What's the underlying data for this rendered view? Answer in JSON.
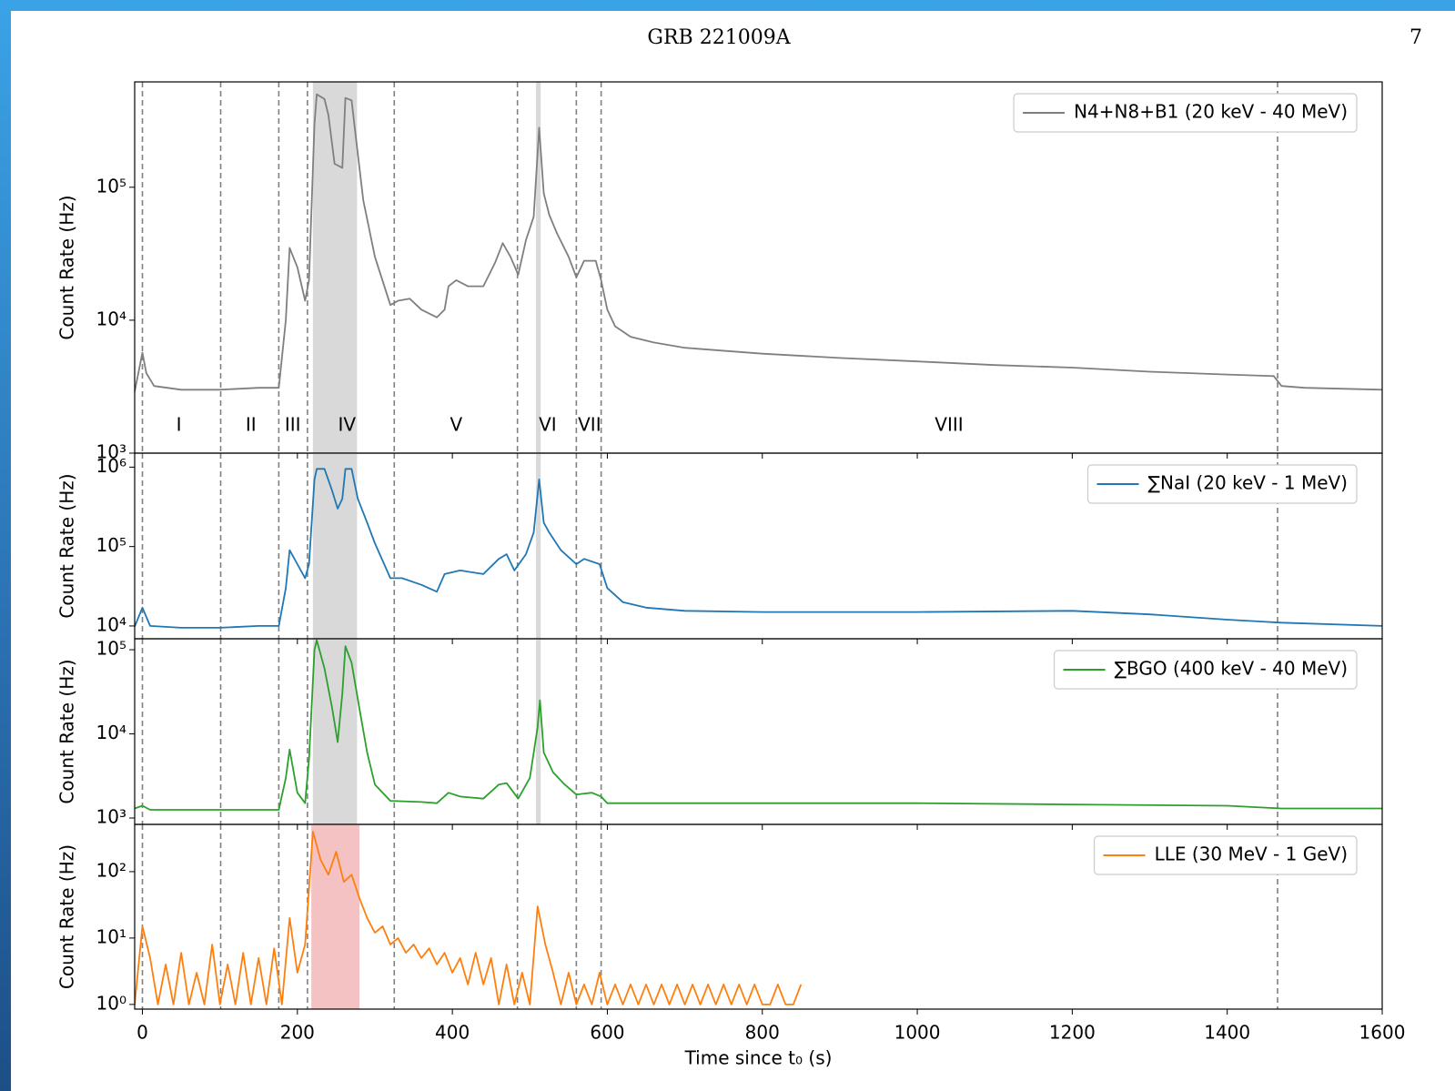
{
  "header": {
    "title": "GRB 221009A",
    "page": "7"
  },
  "chart_data": [
    {
      "type": "line",
      "ylabel": "Count Rate (Hz)",
      "log_y": true,
      "legend": "upper right",
      "xlim": [
        -10,
        1600
      ],
      "ylim": [
        1000,
        620000
      ],
      "yticks": [
        {
          "value": 1000,
          "label": "10³"
        },
        {
          "value": 10000,
          "label": "10⁴"
        },
        {
          "value": 100000,
          "label": "10⁵"
        }
      ],
      "vlines": [
        0,
        101,
        176,
        213,
        325,
        484,
        560,
        592,
        1465
      ],
      "shaded": [
        {
          "range": [
            220,
            277
          ],
          "color": "#d9d9d9"
        },
        {
          "range": [
            508,
            514
          ],
          "color": "#d9d9d9"
        }
      ],
      "regions": [
        {
          "label": "I",
          "x": 47
        },
        {
          "label": "II",
          "x": 140
        },
        {
          "label": "III",
          "x": 194
        },
        {
          "label": "IV",
          "x": 264
        },
        {
          "label": "V",
          "x": 405
        },
        {
          "label": "VI",
          "x": 523
        },
        {
          "label": "VII",
          "x": 577
        },
        {
          "label": "VIII",
          "x": 1041
        }
      ],
      "x": [
        -10,
        0,
        5,
        15,
        50,
        100,
        150,
        176,
        185,
        190,
        200,
        210,
        215,
        222,
        225,
        235,
        240,
        248,
        258,
        262,
        270,
        275,
        285,
        300,
        320,
        330,
        345,
        360,
        380,
        390,
        395,
        405,
        420,
        440,
        455,
        465,
        475,
        485,
        495,
        505,
        512,
        518,
        525,
        535,
        550,
        560,
        570,
        585,
        592,
        600,
        610,
        630,
        660,
        700,
        800,
        900,
        1000,
        1100,
        1200,
        1300,
        1400,
        1460,
        1470,
        1500,
        1600
      ],
      "series": [
        {
          "name": "N4+N8+B1 (20 keV - 40 MeV)",
          "color": "#7f7f7f",
          "values": [
            2900,
            5700,
            4000,
            3200,
            3000,
            3000,
            3100,
            3100,
            10000,
            35000,
            25000,
            14000,
            20000,
            300000,
            500000,
            460000,
            350000,
            150000,
            140000,
            470000,
            450000,
            250000,
            80000,
            30000,
            13000,
            14000,
            14500,
            12000,
            10500,
            12000,
            18000,
            20000,
            18000,
            18000,
            27000,
            38000,
            30000,
            22000,
            40000,
            60000,
            280000,
            90000,
            62000,
            45000,
            30000,
            21000,
            28000,
            28000,
            20000,
            12000,
            9000,
            7500,
            6800,
            6200,
            5600,
            5200,
            4900,
            4600,
            4400,
            4100,
            3900,
            3800,
            3200,
            3100,
            3000
          ]
        }
      ]
    },
    {
      "type": "line",
      "ylabel": "Count Rate (Hz)",
      "log_y": true,
      "legend": "upper right",
      "xlim": [
        -10,
        1600
      ],
      "ylim": [
        6900,
        1500000
      ],
      "yticks": [
        {
          "value": 10000,
          "label": "10⁴"
        },
        {
          "value": 100000,
          "label": "10⁵"
        },
        {
          "value": 1000000,
          "label": "10⁶"
        }
      ],
      "vlines": [
        0,
        101,
        176,
        213,
        325,
        484,
        560,
        592,
        1465
      ],
      "shaded": [
        {
          "range": [
            220,
            277
          ],
          "color": "#d9d9d9"
        },
        {
          "range": [
            508,
            514
          ],
          "color": "#d9d9d9"
        }
      ],
      "x": [
        -10,
        0,
        10,
        50,
        100,
        150,
        176,
        185,
        190,
        200,
        210,
        215,
        222,
        225,
        235,
        245,
        252,
        258,
        262,
        270,
        278,
        290,
        300,
        320,
        335,
        360,
        380,
        390,
        410,
        440,
        460,
        470,
        480,
        495,
        505,
        512,
        518,
        525,
        540,
        560,
        570,
        590,
        600,
        620,
        650,
        700,
        800,
        1000,
        1200,
        1300,
        1400,
        1470,
        1600
      ],
      "series": [
        {
          "name": "∑NaI (20 keV - 1 MeV)",
          "color": "#1f77b4",
          "values": [
            9800,
            17000,
            10000,
            9500,
            9500,
            10000,
            10000,
            30000,
            90000,
            60000,
            40000,
            60000,
            700000,
            950000,
            950000,
            500000,
            300000,
            400000,
            950000,
            950000,
            400000,
            200000,
            110000,
            40000,
            40000,
            33000,
            27000,
            45000,
            50000,
            45000,
            70000,
            80000,
            50000,
            80000,
            150000,
            700000,
            200000,
            150000,
            90000,
            60000,
            70000,
            60000,
            30000,
            20000,
            17000,
            15500,
            15000,
            15000,
            15500,
            14000,
            12000,
            11000,
            10000
          ]
        }
      ]
    },
    {
      "type": "line",
      "ylabel": "Count Rate (Hz)",
      "log_y": true,
      "legend": "upper right",
      "xlim": [
        -10,
        1600
      ],
      "ylim": [
        840,
        135000
      ],
      "yticks": [
        {
          "value": 1000,
          "label": "10³"
        },
        {
          "value": 10000,
          "label": "10⁴"
        },
        {
          "value": 100000,
          "label": "10⁵"
        }
      ],
      "vlines": [
        0,
        101,
        176,
        213,
        325,
        484,
        560,
        592,
        1465
      ],
      "shaded": [
        {
          "range": [
            220,
            277
          ],
          "color": "#d9d9d9"
        },
        {
          "range": [
            508,
            514
          ],
          "color": "#d9d9d9"
        }
      ],
      "x": [
        -10,
        0,
        10,
        100,
        176,
        185,
        190,
        200,
        210,
        215,
        222,
        225,
        235,
        245,
        252,
        258,
        262,
        270,
        280,
        290,
        300,
        320,
        360,
        380,
        395,
        410,
        440,
        460,
        470,
        485,
        500,
        510,
        513,
        518,
        530,
        545,
        560,
        580,
        592,
        600,
        800,
        1000,
        1200,
        1400,
        1470,
        1600
      ],
      "series": [
        {
          "name": "∑BGO (400 keV - 40 MeV)",
          "color": "#2ca02c",
          "values": [
            1300,
            1400,
            1250,
            1250,
            1250,
            3000,
            6500,
            2000,
            1500,
            5000,
            100000,
            130000,
            60000,
            20000,
            8000,
            30000,
            110000,
            70000,
            20000,
            6000,
            2500,
            1600,
            1550,
            1500,
            2000,
            1800,
            1700,
            2500,
            2600,
            1700,
            3000,
            12000,
            25000,
            6000,
            3500,
            2500,
            1900,
            2000,
            1800,
            1500,
            1500,
            1500,
            1450,
            1400,
            1300,
            1300
          ]
        }
      ]
    },
    {
      "type": "line",
      "ylabel": "Count Rate (Hz)",
      "xlabel": "Time since t₀ (s)",
      "log_y": true,
      "legend": "upper right",
      "xlim": [
        -10,
        1600
      ],
      "ylim": [
        0.85,
        515
      ],
      "yticks": [
        {
          "value": 1,
          "label": "10⁰"
        },
        {
          "value": 10,
          "label": "10¹"
        },
        {
          "value": 100,
          "label": "10²"
        }
      ],
      "xticks": [
        0,
        200,
        400,
        600,
        800,
        1000,
        1200,
        1400,
        1600
      ],
      "vlines": [
        0,
        101,
        176,
        213,
        325,
        484,
        560,
        592,
        1465
      ],
      "shaded": [
        {
          "range": [
            218,
            280
          ],
          "color": "#f4c2c2"
        }
      ],
      "x": [
        -10,
        0,
        10,
        20,
        30,
        40,
        50,
        60,
        70,
        80,
        90,
        100,
        110,
        120,
        130,
        140,
        150,
        160,
        170,
        180,
        190,
        200,
        210,
        220,
        230,
        240,
        250,
        260,
        270,
        280,
        290,
        300,
        310,
        320,
        330,
        340,
        350,
        360,
        370,
        380,
        390,
        400,
        410,
        420,
        430,
        440,
        450,
        460,
        470,
        480,
        490,
        500,
        510,
        520,
        530,
        540,
        550,
        560,
        570,
        580,
        590,
        600,
        610,
        620,
        630,
        640,
        650,
        660,
        670,
        680,
        690,
        700,
        710,
        720,
        730,
        740,
        750,
        760,
        770,
        780,
        790,
        800,
        810,
        820,
        830,
        840,
        850
      ],
      "series": [
        {
          "name": "LLE (30 MeV - 1 GeV)",
          "color": "#ff7f0e",
          "values": [
            1,
            15,
            5,
            1,
            4,
            1,
            6,
            1,
            3,
            1,
            8,
            1,
            4,
            1,
            6,
            1,
            5,
            1,
            7,
            1,
            20,
            3,
            8,
            400,
            150,
            90,
            200,
            70,
            90,
            40,
            20,
            12,
            15,
            8,
            10,
            6,
            8,
            5,
            7,
            4,
            6,
            3,
            5,
            2,
            6,
            2,
            5,
            1,
            4,
            1,
            3,
            1,
            30,
            8,
            3,
            1,
            3,
            1,
            2,
            1,
            3,
            1,
            2,
            1,
            2,
            1,
            2,
            1,
            2,
            1,
            2,
            1,
            2,
            1,
            2,
            1,
            2,
            1,
            2,
            1,
            2,
            1,
            1,
            2,
            1,
            1,
            2
          ]
        }
      ]
    }
  ]
}
